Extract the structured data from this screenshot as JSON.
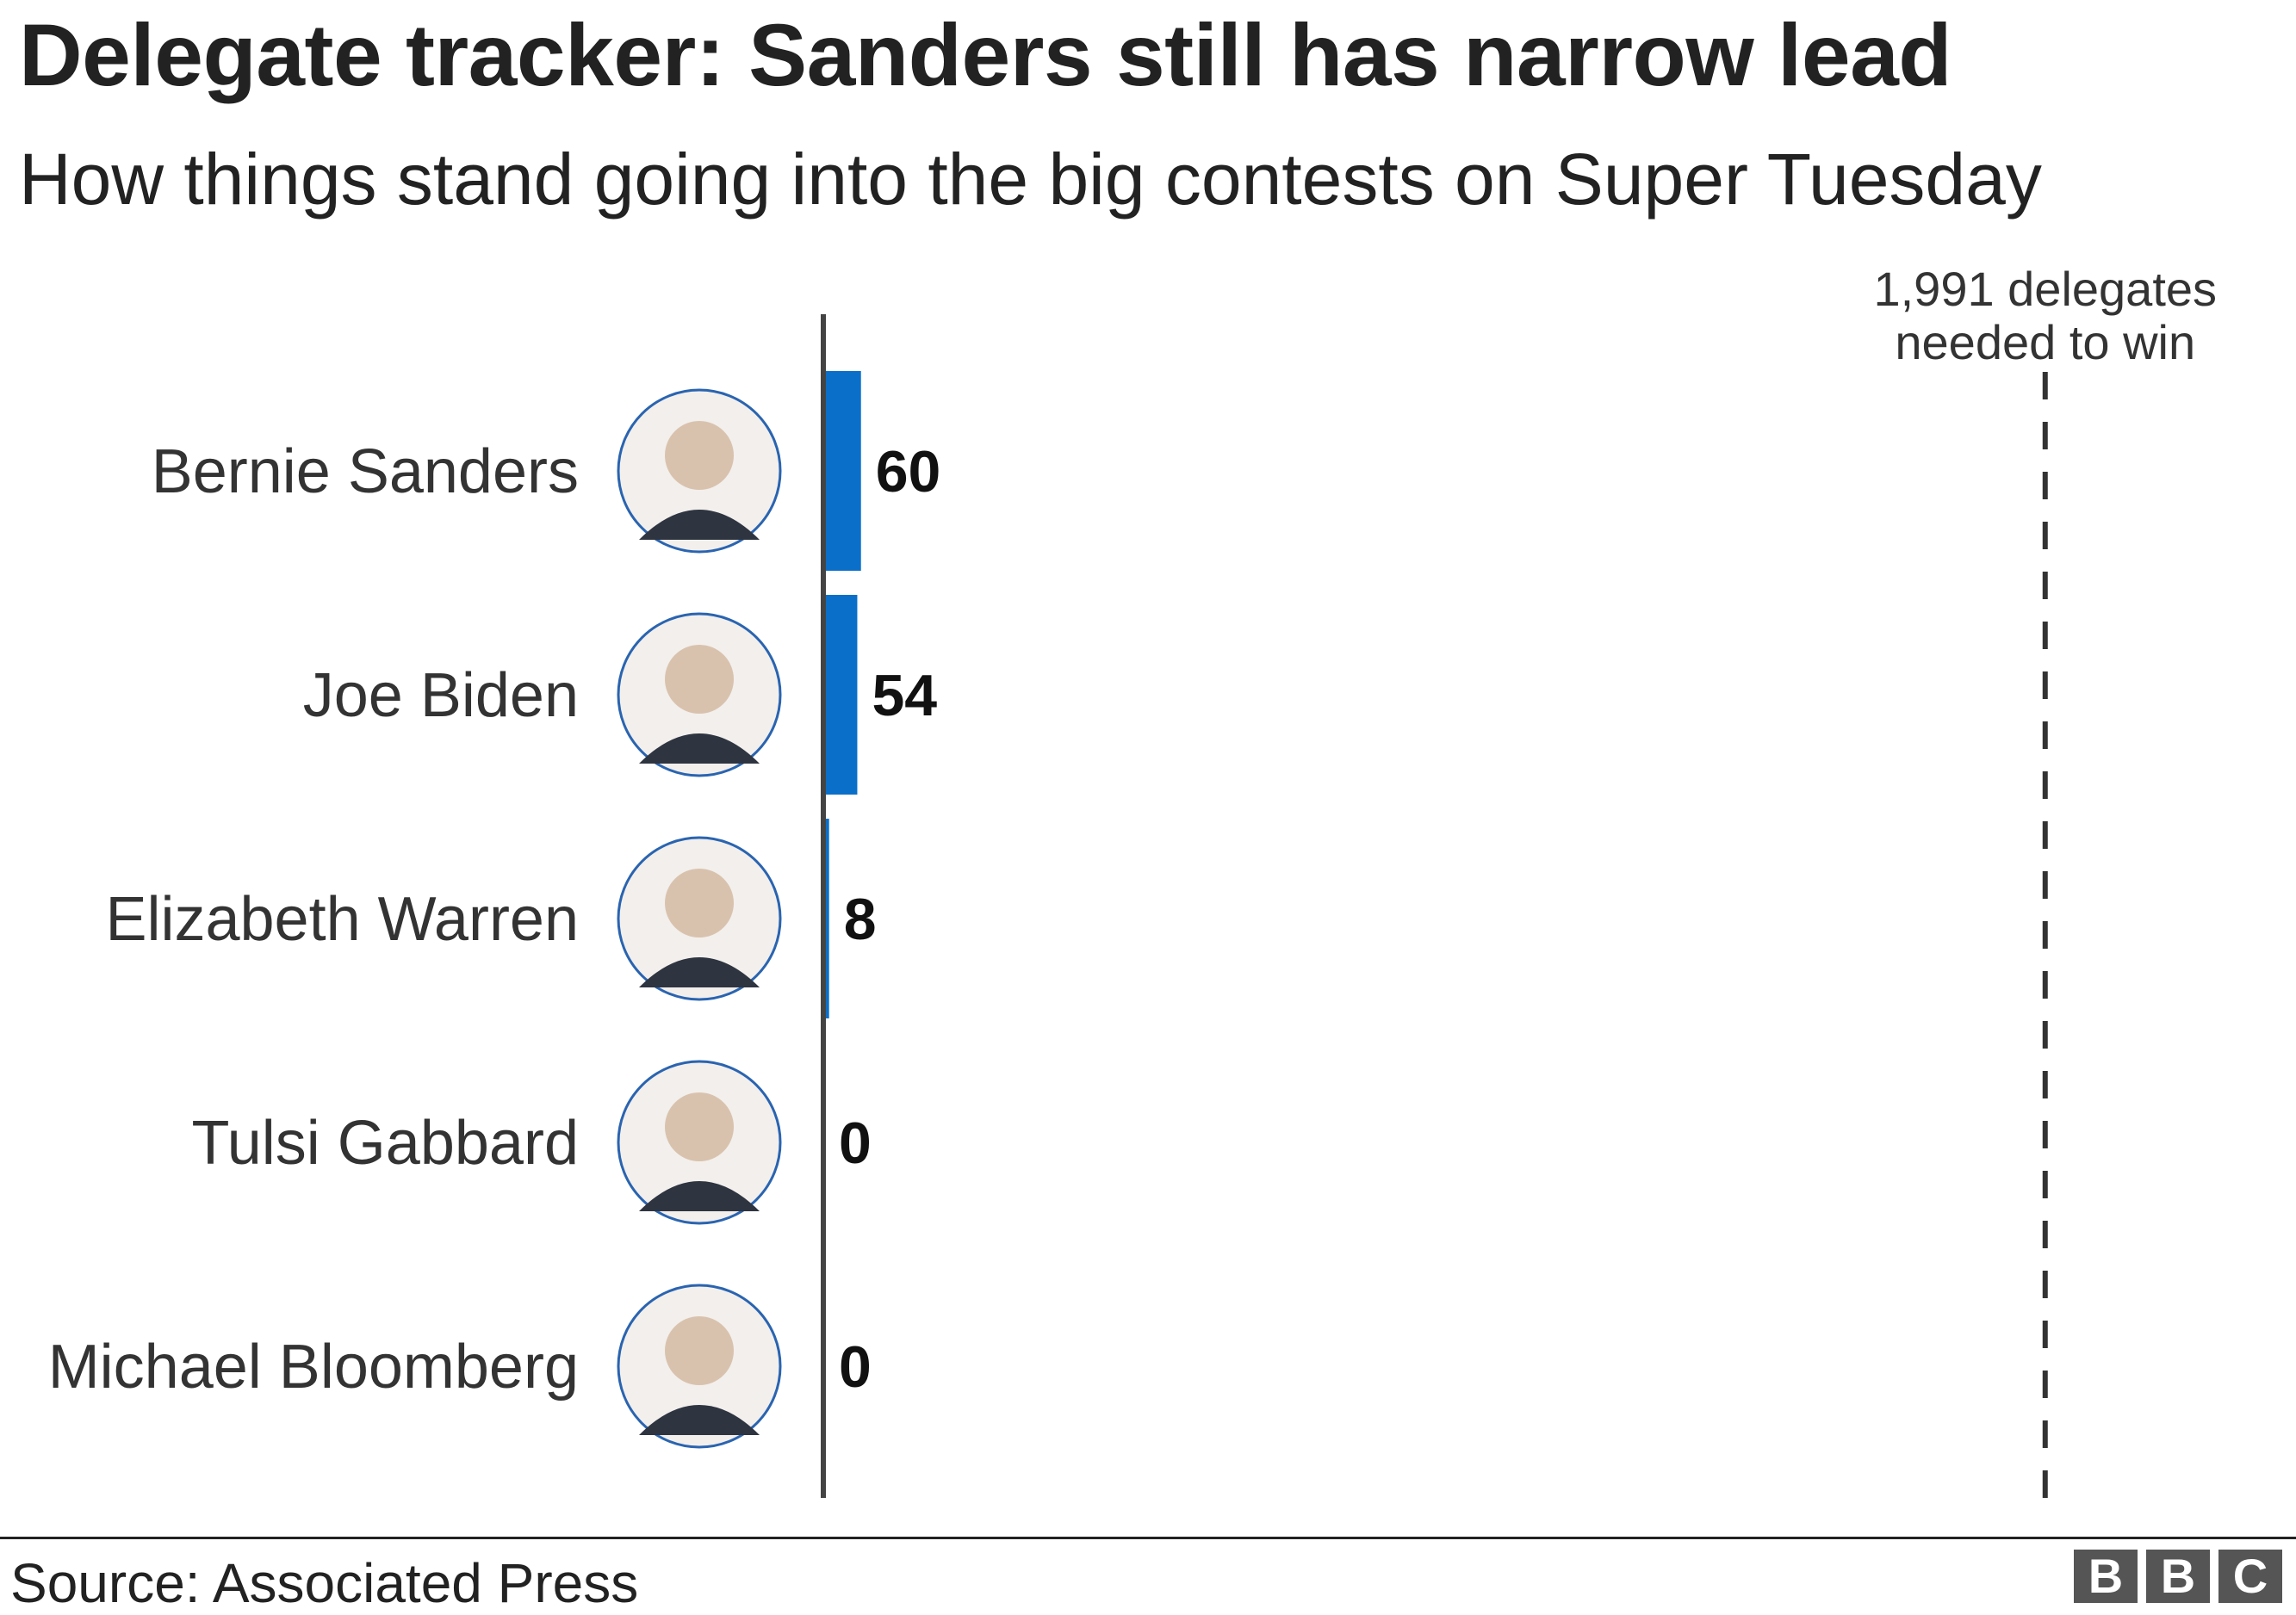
{
  "header": {
    "title": "Delegate tracker: Sanders still has narrow lead",
    "subtitle": "How things stand going into the big contests on Super Tuesday"
  },
  "footer": {
    "source": "Source: Associated Press",
    "logo": [
      "B",
      "B",
      "C"
    ]
  },
  "colors": {
    "bar": "#0a6fc9",
    "axis": "#444444",
    "avatar_ring": "#2a64b0"
  },
  "chart_data": {
    "type": "bar",
    "orientation": "horizontal",
    "categories": [
      "Bernie Sanders",
      "Joe Biden",
      "Elizabeth Warren",
      "Tulsi Gabbard",
      "Michael Bloomberg"
    ],
    "values": [
      60,
      54,
      8,
      0,
      0
    ],
    "value_labels": [
      "60",
      "54",
      "8",
      "0",
      "0"
    ],
    "xlim": [
      0,
      2400
    ],
    "reference_line": {
      "value": 1991,
      "label_lines": [
        "1,991 delegates",
        "needed to win"
      ],
      "style": "dashed"
    },
    "avatars": [
      "portrait-icon",
      "portrait-icon",
      "portrait-icon",
      "portrait-icon",
      "portrait-icon"
    ],
    "grid": false,
    "legend": "none"
  }
}
